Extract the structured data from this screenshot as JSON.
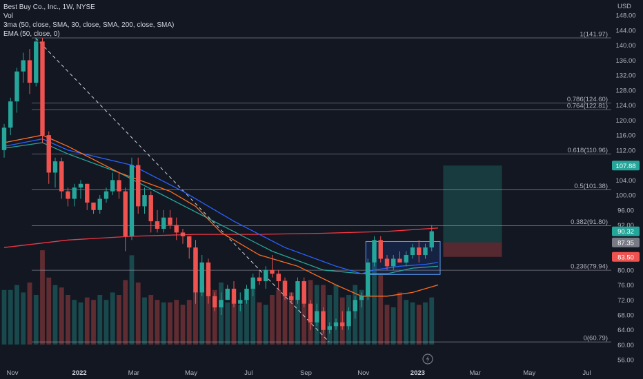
{
  "header": {
    "title": "Best Buy Co., Inc., 1W, NYSE",
    "vol": "Vol",
    "ma": "3ma (50, close, SMA, 30, close, SMA, 200, close, SMA)",
    "ema": "EMA (50, close, 0)"
  },
  "colors": {
    "background": "#131722",
    "up": "#26a69a",
    "down": "#ef5350",
    "sma50": "#2962ff",
    "sma30": "#26a69a",
    "sma200": "#f23645",
    "ema50": "#ff6d1f"
  },
  "lightning_icon": "lightning-icon",
  "chart_data": {
    "type": "candlestick",
    "title": "Best Buy Co., Inc., 1W, NYSE",
    "currency": "USD",
    "ylim": [
      52,
      152
    ],
    "y_ticks": [
      "148.00",
      "144.00",
      "140.00",
      "136.00",
      "132.00",
      "128.00",
      "124.00",
      "120.00",
      "116.00",
      "112.00",
      "108.00",
      "104.00",
      "100.00",
      "96.00",
      "92.00",
      "88.00",
      "84.00",
      "80.00",
      "76.00",
      "72.00",
      "68.00",
      "64.00",
      "60.00",
      "56.00"
    ],
    "x_ticks": [
      {
        "label": "Nov",
        "w": 0,
        "bold": false
      },
      {
        "label": "2022",
        "w": 10.5,
        "bold": true
      },
      {
        "label": "Mar",
        "w": 19,
        "bold": false
      },
      {
        "label": "May",
        "w": 28,
        "bold": false
      },
      {
        "label": "Jul",
        "w": 37,
        "bold": false
      },
      {
        "label": "Sep",
        "w": 46,
        "bold": false
      },
      {
        "label": "Nov",
        "w": 55,
        "bold": false
      },
      {
        "label": "2023",
        "w": 63.5,
        "bold": true
      },
      {
        "label": "Mar",
        "w": 72.5,
        "bold": false
      },
      {
        "label": "May",
        "w": 81,
        "bold": false
      },
      {
        "label": "Jul",
        "w": 90,
        "bold": false
      }
    ],
    "grid": false,
    "candles": [
      [
        112,
        119,
        110,
        118
      ],
      [
        118,
        126,
        116,
        125
      ],
      [
        125,
        134,
        122,
        133
      ],
      [
        133,
        138,
        130,
        136
      ],
      [
        136,
        139,
        127,
        130
      ],
      [
        130,
        142,
        129,
        141
      ],
      [
        141,
        142,
        114,
        116
      ],
      [
        116,
        117,
        103,
        106
      ],
      [
        106,
        110,
        102,
        109
      ],
      [
        109,
        110,
        99,
        101
      ],
      [
        101,
        102,
        97,
        99
      ],
      [
        99,
        103,
        97,
        102
      ],
      [
        102,
        104,
        99,
        103
      ],
      [
        103,
        103,
        96,
        98
      ],
      [
        98,
        98,
        95,
        96
      ],
      [
        96,
        100,
        95,
        99
      ],
      [
        99,
        102,
        98,
        101
      ],
      [
        101,
        106,
        100,
        104
      ],
      [
        104,
        106,
        99,
        101
      ],
      [
        101,
        102,
        85,
        89
      ],
      [
        89,
        110,
        88,
        108
      ],
      [
        108,
        110,
        95,
        97
      ],
      [
        97,
        102,
        95,
        100
      ],
      [
        100,
        101,
        90,
        93
      ],
      [
        93,
        96,
        90,
        91
      ],
      [
        91,
        96,
        90,
        94
      ],
      [
        94,
        96,
        91,
        92
      ],
      [
        92,
        94,
        88,
        90
      ],
      [
        90,
        91,
        87,
        89
      ],
      [
        89,
        89,
        83,
        86
      ],
      [
        86,
        88,
        71,
        74
      ],
      [
        74,
        84,
        73,
        82
      ],
      [
        82,
        83,
        71,
        73
      ],
      [
        73,
        74,
        69,
        70
      ],
      [
        70,
        74,
        68,
        72
      ],
      [
        72,
        76,
        72,
        75
      ],
      [
        75,
        77,
        70,
        71
      ],
      [
        71,
        74,
        69,
        72
      ],
      [
        72,
        76,
        71,
        75
      ],
      [
        75,
        79,
        73,
        78
      ],
      [
        78,
        80,
        76,
        77
      ],
      [
        77,
        81,
        75,
        80
      ],
      [
        80,
        84,
        78,
        79
      ],
      [
        79,
        80,
        75,
        77
      ],
      [
        77,
        78,
        72,
        73
      ],
      [
        73,
        74,
        71,
        72
      ],
      [
        72,
        78,
        71,
        77
      ],
      [
        77,
        78,
        70,
        71
      ],
      [
        71,
        72,
        64,
        66
      ],
      [
        66,
        71,
        65,
        69
      ],
      [
        69,
        70,
        63,
        64
      ],
      [
        64,
        66,
        63,
        65
      ],
      [
        65,
        67,
        64,
        66
      ],
      [
        66,
        69,
        64,
        65
      ],
      [
        65,
        70,
        64,
        69
      ],
      [
        69,
        73,
        67,
        72
      ],
      [
        72,
        74,
        70,
        73
      ],
      [
        73,
        83,
        72,
        82
      ],
      [
        82,
        89,
        81,
        88
      ],
      [
        88,
        89,
        82,
        83
      ],
      [
        83,
        84,
        80,
        81
      ],
      [
        81,
        84,
        80,
        83
      ],
      [
        83,
        85,
        82,
        82
      ],
      [
        82,
        85,
        81,
        84
      ],
      [
        84,
        87,
        83,
        86
      ],
      [
        86,
        88,
        82,
        84
      ],
      [
        84,
        87,
        83,
        86
      ],
      [
        86,
        92,
        85,
        90.32
      ]
    ],
    "volumes": [
      22,
      22,
      24,
      21,
      25,
      20,
      38,
      27,
      24,
      23,
      20,
      18,
      17,
      19,
      18,
      20,
      18,
      21,
      20,
      26,
      36,
      25,
      19,
      20,
      18,
      17,
      17,
      18,
      16,
      18,
      38,
      24,
      23,
      22,
      25,
      17,
      18,
      16,
      19,
      23,
      17,
      16,
      20,
      22,
      26,
      21,
      18,
      20,
      26,
      24,
      24,
      20,
      24,
      19,
      20,
      24,
      22,
      30,
      33,
      28,
      16,
      15,
      21,
      18,
      17,
      16,
      17,
      19
    ],
    "price_labels": [
      {
        "value": 107.88,
        "text": "107.88",
        "color": "#26a69a"
      },
      {
        "value": 90.32,
        "text": "90.32",
        "color": "#26a69a"
      },
      {
        "value": 87.35,
        "text": "87.35",
        "color": "#787b86"
      },
      {
        "value": 83.5,
        "text": "83.50",
        "color": "#ef5350"
      }
    ],
    "fib_levels": [
      {
        "value": 141.97,
        "label": "1(141.97)"
      },
      {
        "value": 124.6,
        "label": "0.786(124.60)"
      },
      {
        "value": 122.81,
        "label": "0.764(122.81)"
      },
      {
        "value": 110.96,
        "label": "0.618(110.96)"
      },
      {
        "value": 101.38,
        "label": "0.5(101.38)"
      },
      {
        "value": 91.8,
        "label": "0.382(91.80)"
      },
      {
        "value": 79.94,
        "label": "0.236(79.94)"
      },
      {
        "value": 60.79,
        "label": "0(60.79)"
      }
    ],
    "trend_line": {
      "from": [
        6,
        141.97
      ],
      "to": [
        52,
        60.79
      ]
    },
    "consolidation_box": {
      "w1": 57,
      "w2": 68,
      "top": 87.6,
      "bottom": 78.8
    },
    "target_zone": {
      "w1": 68.8,
      "w2": 78,
      "top": 107.88,
      "bottom": 87.35
    },
    "stop_zone": {
      "w1": 68.8,
      "w2": 78,
      "top": 87.35,
      "bottom": 83.5
    },
    "sma50": [
      [
        0,
        113
      ],
      [
        6,
        115
      ],
      [
        10,
        112
      ],
      [
        20,
        108
      ],
      [
        28,
        101
      ],
      [
        36,
        93
      ],
      [
        44,
        86
      ],
      [
        52,
        81
      ],
      [
        56,
        79
      ],
      [
        58,
        80
      ],
      [
        62,
        81
      ],
      [
        66,
        81.5
      ],
      [
        68,
        82
      ]
    ],
    "sma30": [
      [
        0,
        112.5
      ],
      [
        6,
        114
      ],
      [
        10,
        111
      ],
      [
        18,
        106
      ],
      [
        26,
        99
      ],
      [
        34,
        92
      ],
      [
        42,
        85
      ],
      [
        50,
        80
      ],
      [
        56,
        79
      ],
      [
        60,
        79
      ],
      [
        64,
        80.5
      ],
      [
        68,
        81
      ]
    ],
    "ema50": [
      [
        0,
        114
      ],
      [
        6,
        116
      ],
      [
        10,
        113
      ],
      [
        18,
        106
      ],
      [
        26,
        101
      ],
      [
        30,
        97
      ],
      [
        34,
        90
      ],
      [
        40,
        84
      ],
      [
        46,
        81
      ],
      [
        52,
        76
      ],
      [
        56,
        73
      ],
      [
        60,
        73
      ],
      [
        64,
        74
      ],
      [
        68,
        76
      ]
    ],
    "sma200": [
      [
        0,
        86
      ],
      [
        10,
        88
      ],
      [
        20,
        89
      ],
      [
        30,
        89.5
      ],
      [
        40,
        89.5
      ],
      [
        50,
        89.8
      ],
      [
        60,
        90.3
      ],
      [
        68,
        91.2
      ]
    ]
  }
}
